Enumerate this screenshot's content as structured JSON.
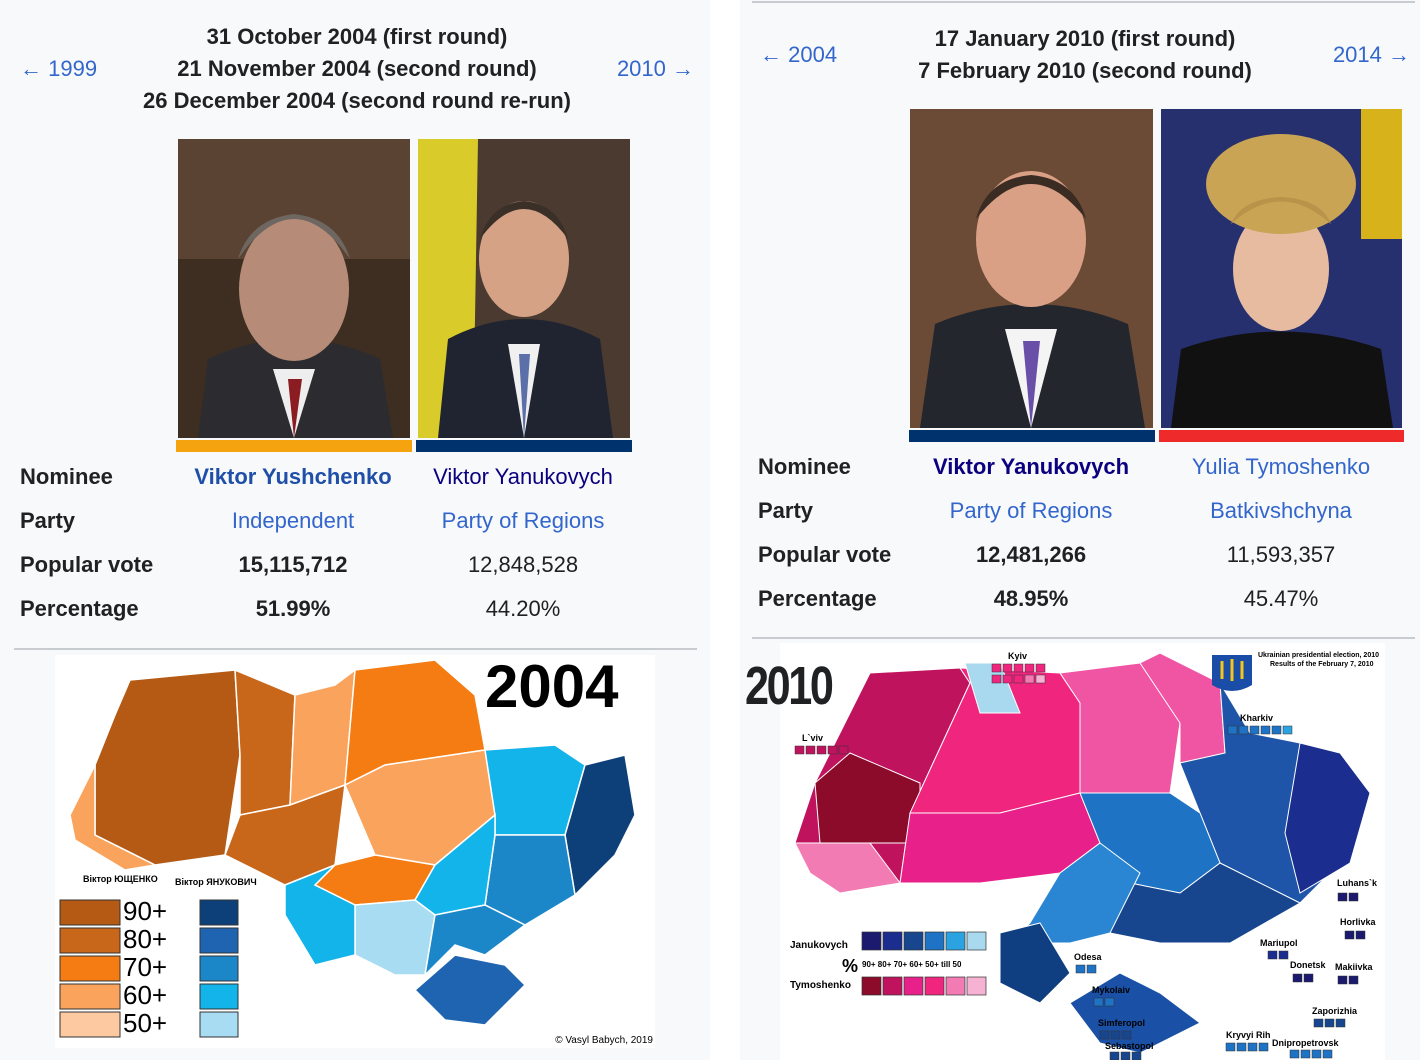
{
  "panels": [
    {
      "prev": "← 1999",
      "next": "2010 →",
      "dates": [
        "31 October 2004 (first round)",
        "21 November 2004 (second round)",
        "26 December 2004 (second round re-run)"
      ],
      "row_labels": [
        "Nominee",
        "Party",
        "Popular vote",
        "Percentage"
      ],
      "candidates": [
        {
          "nominee": "Viktor Yushchenko",
          "party": "Independent",
          "popular_vote": "15,115,712",
          "percentage": "51.99%"
        },
        {
          "nominee": "Viktor Yanukovych",
          "party": "Party of Regions",
          "popular_vote": "12,848,528",
          "percentage": "44.20%"
        }
      ],
      "map": {
        "title": "2004",
        "legend_left": "Віктор ЮЩЕНКО",
        "legend_right": "Віктор ЯНУКОВИЧ",
        "legend_levels": [
          "90+",
          "80+",
          "70+",
          "60+",
          "50+"
        ],
        "credit": "© Vasyl Babych, 2019"
      }
    },
    {
      "prev": "← 2004",
      "next": "2014 →",
      "dates": [
        "17 January 2010 (first round)",
        "7 February 2010 (second round)"
      ],
      "row_labels": [
        "Nominee",
        "Party",
        "Popular vote",
        "Percentage"
      ],
      "candidates": [
        {
          "nominee": "Viktor Yanukovych",
          "party": "Party of Regions",
          "popular_vote": "12,481,266",
          "percentage": "48.95%"
        },
        {
          "nominee": "Yulia Tymoshenko",
          "party": "Batkivshchyna",
          "popular_vote": "11,593,357",
          "percentage": "45.47%"
        }
      ],
      "map": {
        "title": "2010",
        "heading": [
          "Ukrainian presidential election, 2010",
          "Results of the February 7, 2010"
        ],
        "legend_top": "Janukovych",
        "legend_bottom": "Tymoshenko",
        "percent_sign": "%",
        "legend_levels": "90+ 80+ 70+ 60+ 50+ till 50",
        "cities": [
          "Kyiv",
          "L`viv",
          "Kharkiv",
          "Luhans`k",
          "Horlivka",
          "Mariupol",
          "Donetsk",
          "Makiivka",
          "Odesa",
          "Mykolaiv",
          "Zaporizhia",
          "Simferopol",
          "Kryvyi Rih",
          "Dnipropetrovsk",
          "Sebastopol"
        ]
      }
    }
  ]
}
